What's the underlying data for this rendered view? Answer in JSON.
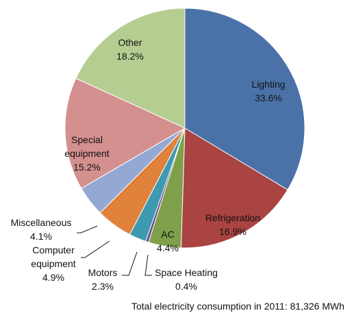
{
  "chart_data": {
    "type": "pie",
    "categories": [
      "Lighting",
      "Refrigeration",
      "AC",
      "Space Heating",
      "Motors",
      "Computer equipment",
      "Miscellaneous",
      "Special equipment",
      "Other"
    ],
    "values": [
      33.6,
      16.9,
      4.4,
      0.4,
      2.3,
      4.9,
      4.1,
      15.2,
      18.2
    ],
    "value_labels": [
      "33.6%",
      "16.9%",
      "4.4%",
      "0.4%",
      "2.3%",
      "4.9%",
      "4.1%",
      "15.2%",
      "18.2%"
    ],
    "colors": [
      "#4a72a8",
      "#a94443",
      "#7fa04a",
      "#6d4f93",
      "#3d9ab0",
      "#e0823b",
      "#93a9d3",
      "#d48f8f",
      "#b6cd92"
    ],
    "annotation": "Total electricity consumption in 2011: 81,326 MWh"
  }
}
